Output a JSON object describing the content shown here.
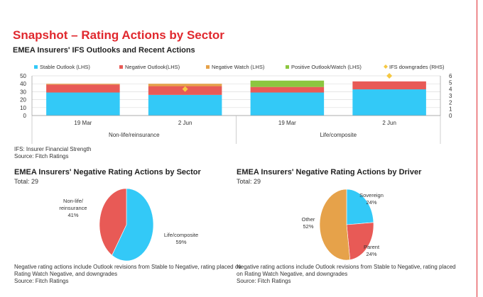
{
  "page": {
    "title": "Snapshot – Rating Actions by Sector",
    "accent_color": "#e0282e"
  },
  "chart_data": [
    {
      "type": "bar",
      "stacked": true,
      "title": "EMEA Insurers' IFS Outlooks and Recent Actions",
      "categories": [
        "19 Mar",
        "2 Jun",
        "19 Mar",
        "2 Jun"
      ],
      "groups": [
        {
          "label": "Non-life/reinsurance",
          "categories": [
            0,
            1
          ]
        },
        {
          "label": "Life/composite",
          "categories": [
            2,
            3
          ]
        }
      ],
      "series": [
        {
          "name": "Stable Outlook (LHS)",
          "color": "#33c9f7",
          "axis": "left",
          "values": [
            29,
            26,
            29,
            33
          ]
        },
        {
          "name": "Negative Outlook(LHS)",
          "color": "#e85a56",
          "axis": "left",
          "values": [
            10,
            11,
            7,
            10
          ]
        },
        {
          "name": "Negative Watch (LHS)",
          "color": "#e6a24a",
          "axis": "left",
          "values": [
            1,
            3,
            0,
            0
          ]
        },
        {
          "name": "Positive Outlook/Watch (LHS)",
          "color": "#8cc63f",
          "axis": "left",
          "values": [
            0,
            0,
            8,
            0
          ]
        },
        {
          "name": "IFS downgrades (RHS)",
          "color": "#f5c842",
          "axis": "right",
          "type": "scatter",
          "marker": "diamond",
          "values": [
            null,
            4,
            null,
            6
          ]
        }
      ],
      "ylim": [
        0,
        50
      ],
      "yticks": [
        0,
        10,
        20,
        30,
        40,
        50
      ],
      "y2lim": [
        0,
        6
      ],
      "y2ticks": [
        0,
        1,
        2,
        3,
        4,
        5,
        6
      ],
      "grid": true,
      "legend": "top",
      "notes": [
        "IFS: Insurer Financial Strength",
        "Source: Fitch Ratings"
      ]
    },
    {
      "type": "pie",
      "title": "EMEA Insurers' Negative Rating Actions by Sector",
      "subtitle": "Total: 29",
      "slices": [
        {
          "label": "Life/composite",
          "value": 59,
          "pct_label": "59%",
          "color": "#33c9f7"
        },
        {
          "label": "Non-life/ reinsurance",
          "value": 41,
          "pct_label": "41%",
          "color": "#e85a56"
        }
      ],
      "notes": [
        "Negative rating actions include Outlook revisions from Stable to Negative, rating placed on",
        "Rating Watch Negative, and downgrades",
        "Source: Fitch Ratings"
      ]
    },
    {
      "type": "pie",
      "title": "EMEA Insurers' Negative Rating Actions by Driver",
      "subtitle": "Total: 29",
      "slices": [
        {
          "label": "Sovereign",
          "value": 24,
          "pct_label": "24%",
          "color": "#33c9f7"
        },
        {
          "label": "Parent",
          "value": 24,
          "pct_label": "24%",
          "color": "#e85a56"
        },
        {
          "label": "Other",
          "value": 52,
          "pct_label": "52%",
          "color": "#e6a24a"
        }
      ],
      "notes": [
        "Negative rating actions include Outlook revisions from Stable to Negative, rating placed",
        "on Rating Watch Negative, and downgrades",
        "Source: Fitch Ratings"
      ]
    }
  ]
}
